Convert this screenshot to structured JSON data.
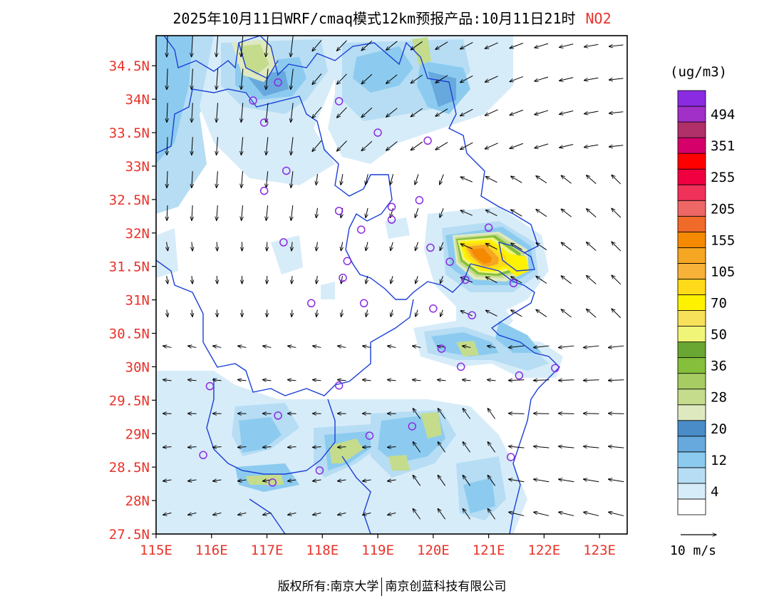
{
  "title": {
    "main": "2025年10月11日WRF/cmaq模式12km预报产品:10月11日21时",
    "pollutant": "NO2"
  },
  "map": {
    "lat_labels": [
      "34.5N",
      "34N",
      "33.5N",
      "33N",
      "32.5N",
      "32N",
      "31.5N",
      "31N",
      "30.5N",
      "30N",
      "29.5N",
      "29N",
      "28.5N",
      "28N",
      "27.5N"
    ],
    "lon_labels": [
      "115E",
      "116E",
      "117E",
      "118E",
      "119E",
      "120E",
      "121E",
      "122E",
      "123E"
    ],
    "lat_range": [
      27.5,
      34.95
    ],
    "lon_range": [
      115,
      123.5
    ],
    "boundary_color": "#1a3fd6",
    "station_color": "#8a2be2",
    "hotspot_location": "Shanghai",
    "stations": [
      [
        117.2,
        34.25
      ],
      [
        116.75,
        33.98
      ],
      [
        116.95,
        33.65
      ],
      [
        118.3,
        33.97
      ],
      [
        119.0,
        33.5
      ],
      [
        119.9,
        33.38
      ],
      [
        117.35,
        32.93
      ],
      [
        116.95,
        32.63
      ],
      [
        118.3,
        32.33
      ],
      [
        119.25,
        32.39
      ],
      [
        119.25,
        32.2
      ],
      [
        119.75,
        32.49
      ],
      [
        118.7,
        32.05
      ],
      [
        117.3,
        31.86
      ],
      [
        119.95,
        31.78
      ],
      [
        120.3,
        31.57
      ],
      [
        120.58,
        31.3
      ],
      [
        121.0,
        32.08
      ],
      [
        121.45,
        31.25
      ],
      [
        118.45,
        31.58
      ],
      [
        118.37,
        31.33
      ],
      [
        117.8,
        30.95
      ],
      [
        118.75,
        30.95
      ],
      [
        120.0,
        30.87
      ],
      [
        120.7,
        30.77
      ],
      [
        120.15,
        30.27
      ],
      [
        120.5,
        30.0
      ],
      [
        121.55,
        29.87
      ],
      [
        122.2,
        29.98
      ],
      [
        118.3,
        29.72
      ],
      [
        115.97,
        29.71
      ],
      [
        117.2,
        29.27
      ],
      [
        115.85,
        28.68
      ],
      [
        118.85,
        28.97
      ],
      [
        119.62,
        29.11
      ],
      [
        117.95,
        28.45
      ],
      [
        117.1,
        28.27
      ],
      [
        121.4,
        28.65
      ]
    ],
    "wind_unit": "10 m/s"
  },
  "colorbar": {
    "unit": "(ug/m3)",
    "colors": [
      "#ffffff",
      "#d7ecf9",
      "#b6ddf4",
      "#8ccbef",
      "#67a9dd",
      "#4a8cc7",
      "#dfe9c0",
      "#c4dc8c",
      "#a6cc63",
      "#85bf3c",
      "#6aa632",
      "#f0f578",
      "#f7e05a",
      "#fff200",
      "#ffda1a",
      "#f7b23a",
      "#f5a623",
      "#f58a00",
      "#f06a2a",
      "#ee6767",
      "#f0325a",
      "#f00040",
      "#ff0000",
      "#d6006a",
      "#b0306a",
      "#a030c8",
      "#8a2be2"
    ],
    "labels": [
      {
        "text": "4",
        "index": 1
      },
      {
        "text": "12",
        "index": 3
      },
      {
        "text": "20",
        "index": 5
      },
      {
        "text": "28",
        "index": 7
      },
      {
        "text": "36",
        "index": 9
      },
      {
        "text": "50",
        "index": 11
      },
      {
        "text": "70",
        "index": 13
      },
      {
        "text": "105",
        "index": 15
      },
      {
        "text": "155",
        "index": 17
      },
      {
        "text": "205",
        "index": 19
      },
      {
        "text": "255",
        "index": 21
      },
      {
        "text": "351",
        "index": 23
      },
      {
        "text": "494",
        "index": 25
      }
    ]
  },
  "footer": {
    "left": "版权所有:南京大学",
    "right": "南京创蓝科技有限公司"
  }
}
